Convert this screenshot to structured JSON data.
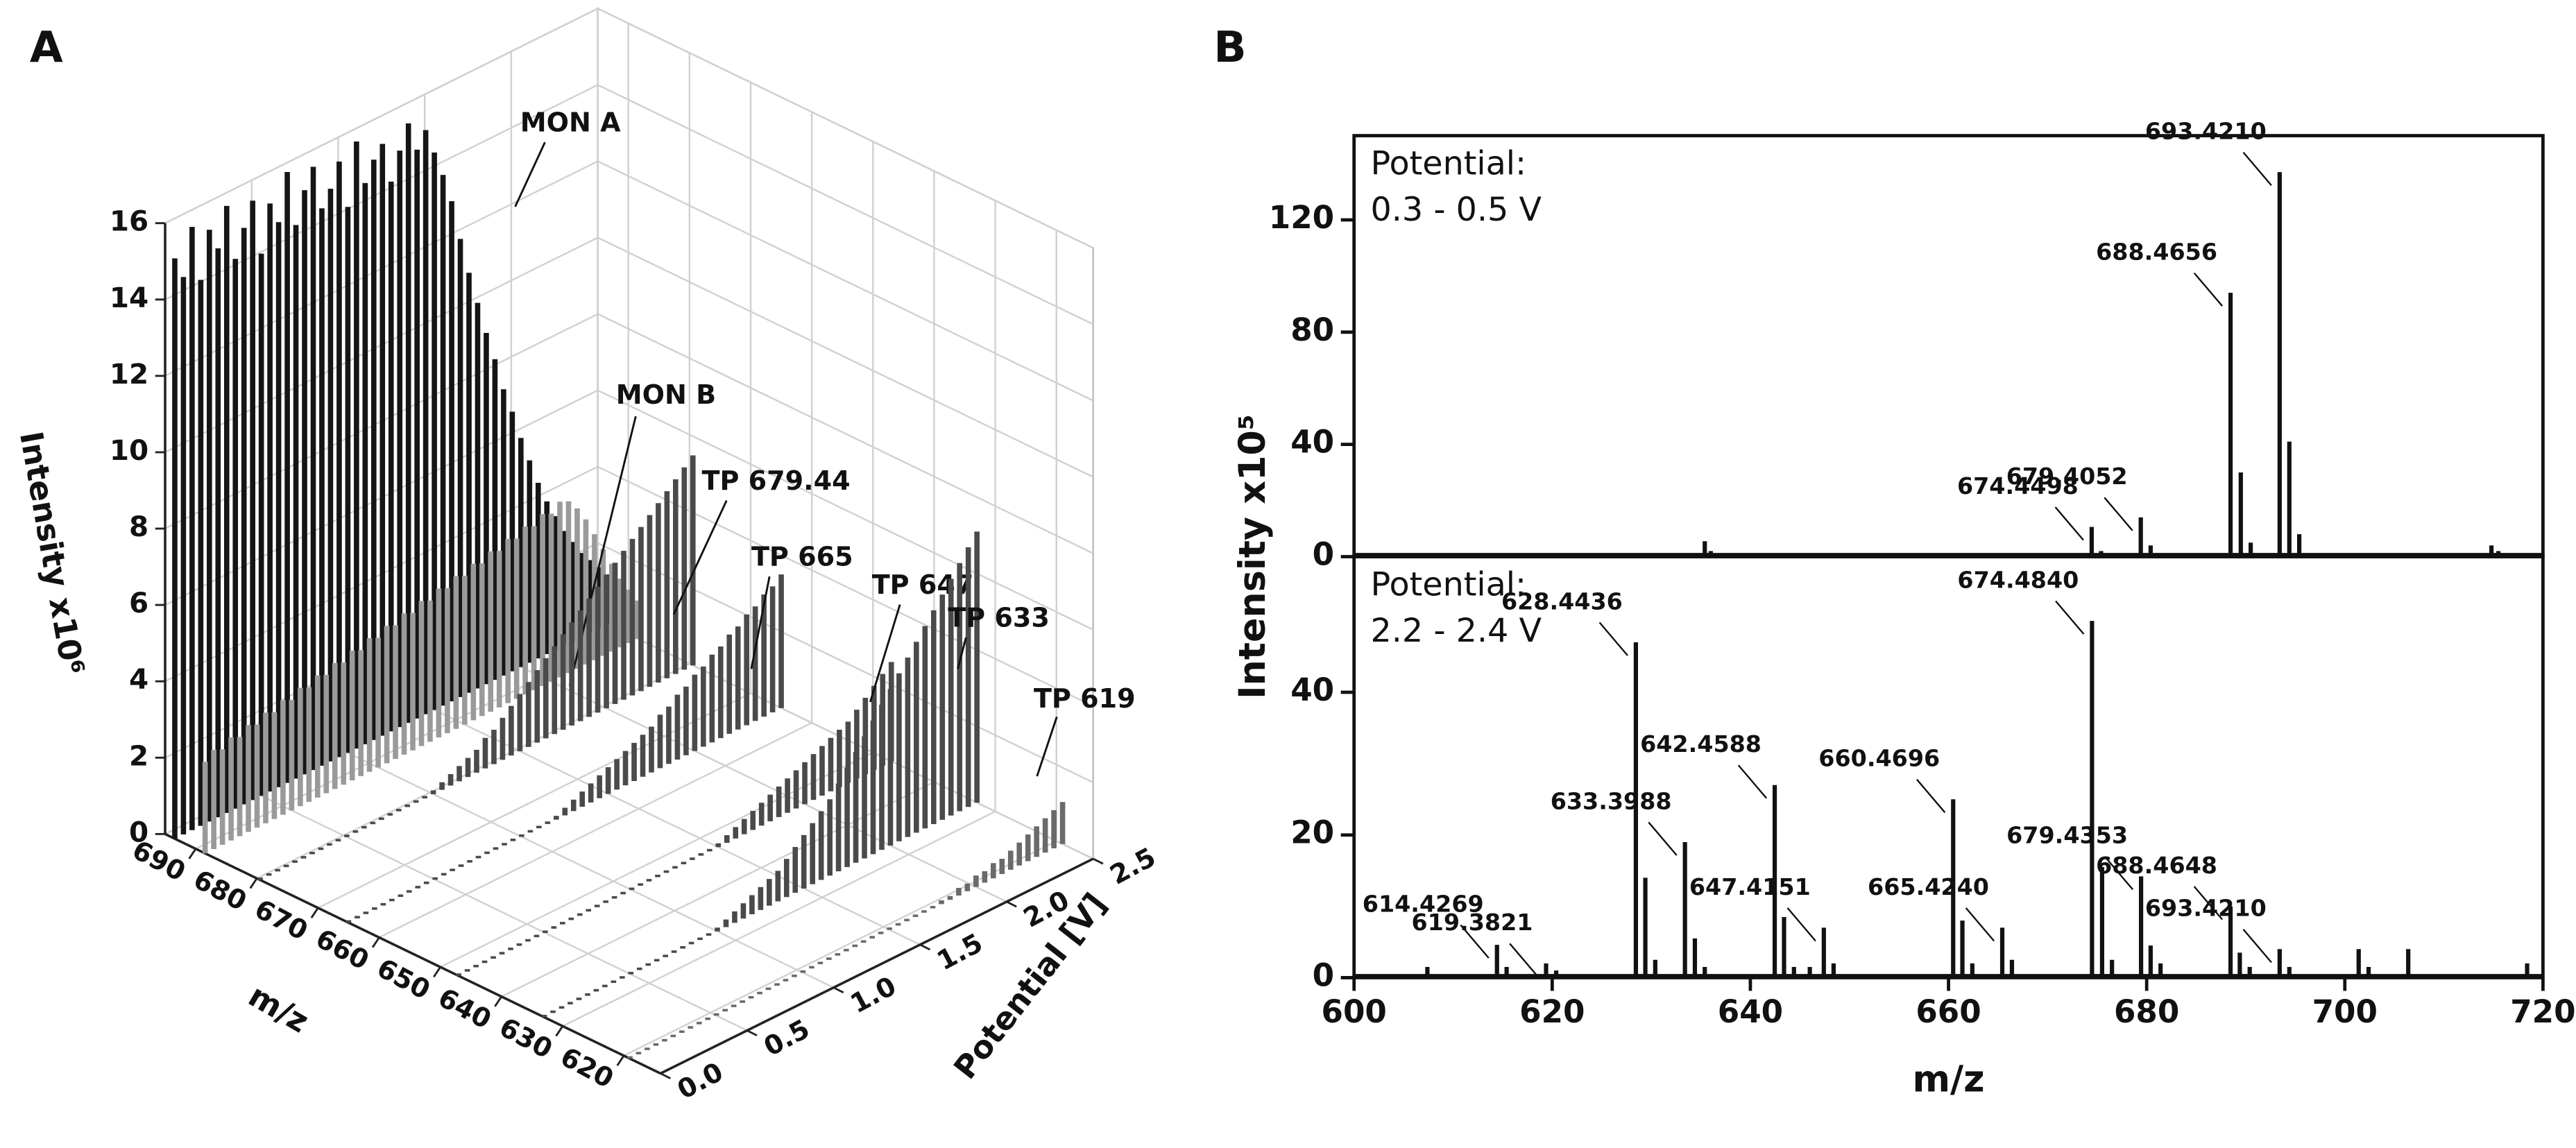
{
  "chart_data": [
    {
      "type": "waterfall3d",
      "panel_label": "A",
      "xlabel": "m/z",
      "ylabel": "Potential [V]",
      "zlabel": "Intensity x10⁶",
      "xlim": [
        614,
        695
      ],
      "xticks": [
        620,
        630,
        640,
        650,
        660,
        670,
        680,
        690
      ],
      "ylim": [
        0,
        2.5
      ],
      "yticks": [
        {
          "value": 0,
          "label": "0.0"
        },
        0.5,
        {
          "value": 1,
          "label": "1.0"
        },
        1.5,
        {
          "value": 2,
          "label": "2.0"
        },
        2.5
      ],
      "zlim": [
        0,
        16
      ],
      "zticks": [
        0,
        2,
        4,
        6,
        8,
        10,
        12,
        14,
        16
      ],
      "grid": true,
      "y": [
        0,
        0.05,
        0.1,
        0.15,
        0.2,
        0.25,
        0.3,
        0.35,
        0.4,
        0.45,
        0.5,
        0.55,
        0.6,
        0.65,
        0.7,
        0.75,
        0.8,
        0.85,
        0.9,
        0.95,
        1,
        1.05,
        1.1,
        1.15,
        1.2,
        1.25,
        1.3,
        1.35,
        1.4,
        1.45,
        1.5,
        1.55,
        1.6,
        1.65,
        1.7,
        1.75,
        1.8,
        1.85,
        1.9,
        1.95,
        2,
        2.05,
        2.1,
        2.15,
        2.2,
        2.25,
        2.3,
        2.35,
        2.4,
        2.45,
        2.5
      ],
      "series": [
        {
          "name": "MON A",
          "mz": 693.42,
          "color": "#151515",
          "values": [
            15.2,
            14.6,
            15.8,
            14.3,
            15.5,
            14.9,
            15.9,
            14.4,
            15.1,
            15.7,
            14.2,
            15.4,
            14.8,
            16.0,
            14.5,
            15.3,
            15.8,
            14.6,
            15.0,
            15.6,
            14.3,
            15.9,
            14.7,
            15.2,
            15.5,
            14.4,
            15.1,
            15.7,
            14.9,
            15.3,
            14.6,
            13.9,
            13.1,
            12.0,
            11.0,
            10.1,
            9.2,
            8.4,
            7.5,
            6.8,
            6.0,
            5.3,
            4.6,
            4.0,
            3.5,
            3.0,
            2.6,
            2.2,
            1.9,
            1.6,
            1.3
          ]
        },
        {
          "name": "MON B",
          "mz": 688.46,
          "color": "#9a9a9a",
          "values": [
            2.4,
            2.6,
            2.5,
            2.7,
            2.6,
            2.8,
            2.7,
            2.9,
            2.8,
            3.0,
            2.9,
            3.1,
            3.0,
            3.2,
            3.1,
            3.3,
            3.2,
            3.4,
            3.3,
            3.5,
            3.4,
            3.6,
            3.5,
            3.7,
            3.6,
            3.8,
            3.7,
            3.9,
            3.8,
            4.0,
            3.9,
            4.1,
            4.0,
            4.2,
            4.1,
            4.3,
            4.2,
            4.4,
            4.3,
            4.5,
            4.4,
            4.6,
            4.5,
            4.2,
            3.8,
            3.3,
            2.8,
            2.3,
            1.8,
            1.4,
            1.0
          ]
        },
        {
          "name": "TP 679.44",
          "mz": 679.44,
          "color": "#4a4a4a",
          "values": [
            0,
            0,
            0,
            0,
            0,
            0,
            0,
            0,
            0,
            0,
            0,
            0,
            0,
            0,
            0,
            0,
            0,
            0,
            0,
            0,
            0.1,
            0.2,
            0.3,
            0.4,
            0.5,
            0.6,
            0.8,
            0.9,
            1.1,
            1.3,
            1.5,
            1.7,
            1.9,
            2.1,
            2.3,
            2.5,
            2.7,
            2.9,
            3.1,
            3.3,
            3.5,
            3.7,
            3.9,
            4.1,
            4.3,
            4.5,
            4.7,
            4.9,
            5.1,
            5.3,
            5.5
          ]
        },
        {
          "name": "TP 665",
          "mz": 665,
          "color": "#4a4a4a",
          "values": [
            0,
            0,
            0,
            0,
            0,
            0,
            0,
            0,
            0,
            0,
            0,
            0,
            0,
            0,
            0,
            0,
            0,
            0,
            0,
            0,
            0,
            0,
            0,
            0,
            0.1,
            0.2,
            0.3,
            0.4,
            0.5,
            0.6,
            0.7,
            0.8,
            0.9,
            1.0,
            1.1,
            1.2,
            1.4,
            1.5,
            1.7,
            1.8,
            2.0,
            2.1,
            2.3,
            2.4,
            2.6,
            2.7,
            2.9,
            3.0,
            3.2,
            3.3,
            3.5
          ]
        },
        {
          "name": "TP 647",
          "mz": 647,
          "color": "#4a4a4a",
          "values": [
            0,
            0,
            0,
            0,
            0,
            0,
            0,
            0,
            0,
            0,
            0,
            0,
            0,
            0,
            0,
            0,
            0,
            0,
            0,
            0,
            0,
            0,
            0,
            0,
            0,
            0,
            0,
            0,
            0,
            0,
            0.1,
            0.2,
            0.3,
            0.4,
            0.5,
            0.6,
            0.7,
            0.8,
            0.9,
            1.0,
            1.1,
            1.2,
            1.3,
            1.4,
            1.5,
            1.6,
            1.8,
            2.0,
            2.2,
            2.4,
            2.6
          ]
        },
        {
          "name": "TP 633",
          "mz": 633,
          "color": "#4a4a4a",
          "values": [
            0,
            0,
            0,
            0,
            0,
            0,
            0,
            0,
            0,
            0,
            0,
            0,
            0,
            0,
            0,
            0,
            0,
            0,
            0,
            0,
            0.1,
            0.2,
            0.3,
            0.4,
            0.5,
            0.6,
            0.7,
            0.8,
            1.0,
            1.2,
            1.4,
            1.6,
            1.8,
            2.0,
            2.3,
            2.6,
            2.9,
            3.2,
            3.5,
            3.8,
            4.1,
            4.4,
            4.7,
            5.0,
            5.3,
            5.6,
            5.9,
            6.2,
            6.5,
            6.8,
            7.1
          ]
        },
        {
          "name": "TP 619",
          "mz": 619,
          "color": "#6a6a6a",
          "values": [
            0,
            0,
            0,
            0,
            0,
            0,
            0,
            0,
            0,
            0,
            0,
            0,
            0,
            0,
            0,
            0,
            0,
            0,
            0,
            0,
            0,
            0,
            0,
            0,
            0,
            0,
            0,
            0,
            0,
            0,
            0,
            0,
            0,
            0,
            0,
            0,
            0.1,
            0.1,
            0.2,
            0.2,
            0.3,
            0.3,
            0.4,
            0.4,
            0.5,
            0.6,
            0.7,
            0.8,
            0.9,
            1.0,
            1.1
          ]
        }
      ]
    },
    {
      "type": "stick",
      "panel_label": "B",
      "ylabel": "Intensity x10⁵",
      "annotation": [
        "Potential:",
        "0.3 - 0.5 V"
      ],
      "xlim": [
        600,
        720
      ],
      "ylim": [
        0,
        150
      ],
      "yticks": [
        0,
        40,
        80,
        120
      ],
      "labeled_peaks": {
        "x": [
          674.4498,
          679.4052,
          688.4656,
          {
            "value": 693.421,
            "label": "693.4210"
          }
        ],
        "values": [
          10.6,
          14,
          94,
          137
        ]
      },
      "minor_peaks": {
        "x": [
          607,
          621,
          635.4,
          636,
          653,
          675.4,
          680.4,
          689.5,
          690.5,
          694.4,
          695.4,
          703,
          714.8,
          715.5
        ],
        "values": [
          1,
          1,
          5.5,
          2,
          1,
          2,
          4,
          30,
          5,
          41,
          8,
          1,
          4,
          2
        ]
      }
    },
    {
      "type": "stick",
      "xlabel": "m/z",
      "annotation": [
        "Potential:",
        "2.2 - 2.4 V"
      ],
      "xlim": [
        600,
        720
      ],
      "xticks": [
        600,
        620,
        640,
        660,
        680,
        700,
        720
      ],
      "ylim": [
        0,
        59
      ],
      "yticks": [
        0,
        20,
        40
      ],
      "labeled_peaks": {
        "x": [
          614.4269,
          619.3821,
          628.4436,
          633.3988,
          642.4588,
          647.4151,
          660.4696,
          {
            "value": 665.424,
            "label": "665.4240"
          },
          {
            "value": 674.484,
            "label": "674.4840"
          },
          679.4353,
          688.4648,
          {
            "value": 693.421,
            "label": "693.4210"
          }
        ],
        "values": [
          4.6,
          2,
          47,
          19,
          27,
          7,
          25,
          7,
          50,
          14.2,
          10,
          4
        ]
      },
      "minor_peaks": {
        "x": [
          607.4,
          615.4,
          620.4,
          629.4,
          630.4,
          634.4,
          635.4,
          643.4,
          644.4,
          646,
          648.4,
          661.4,
          662.4,
          666.4,
          675.5,
          676.5,
          680.4,
          681.4,
          689.4,
          690.4,
          694.4,
          701.4,
          702.4,
          706.4,
          718.4
        ],
        "values": [
          1.5,
          1.5,
          1,
          14,
          2.5,
          5.5,
          1.5,
          8.5,
          1.5,
          1.5,
          2,
          8,
          2,
          2.5,
          15.5,
          2.5,
          4.5,
          2,
          3.5,
          1.5,
          1.5,
          4,
          1.5,
          4,
          2
        ]
      }
    }
  ]
}
